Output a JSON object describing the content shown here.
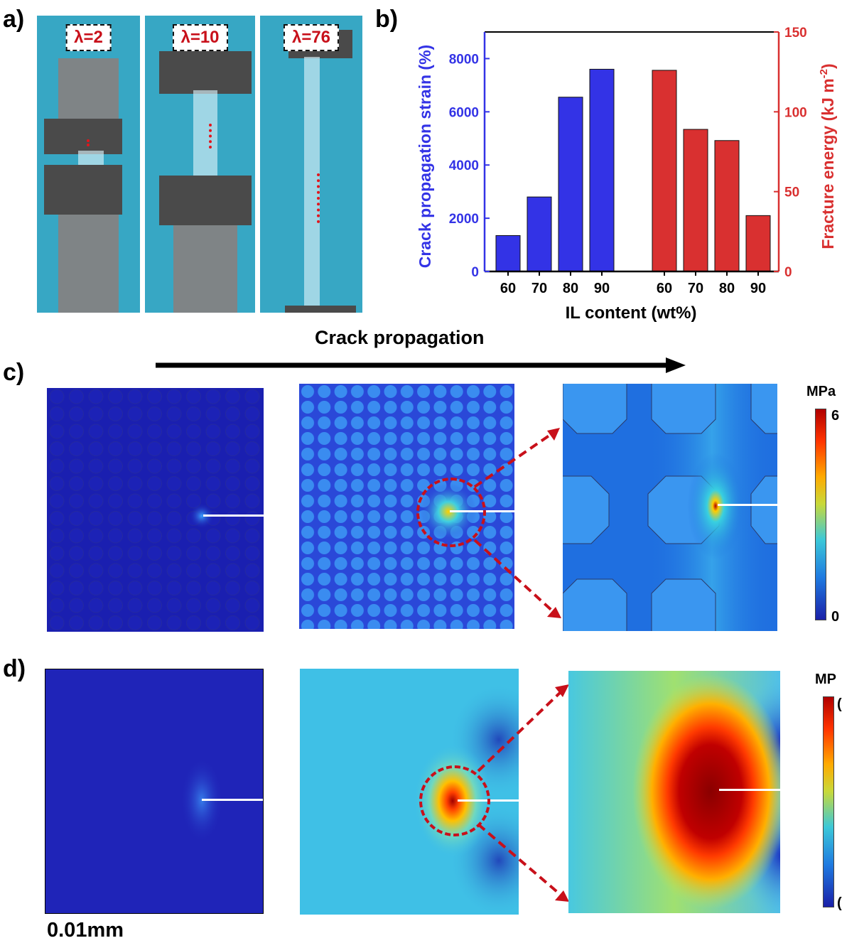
{
  "panels": {
    "a": "a)",
    "b": "b)",
    "c": "c)",
    "d": "d)"
  },
  "photos": [
    {
      "lambda": "λ=2"
    },
    {
      "lambda": "λ=10"
    },
    {
      "lambda": "λ=76"
    }
  ],
  "arrow_label": "Crack propagation",
  "colorbar_c": {
    "unit": "MPa",
    "max": "6",
    "min": "0"
  },
  "colorbar_d": {
    "unit": "MP",
    "max": "(",
    "min": "("
  },
  "scale_label": "0.01mm",
  "colors": {
    "blue": "#3333e6",
    "red": "#d93030",
    "accent_red": "#c8101a"
  },
  "chart_data": {
    "type": "bar",
    "xlabel": "IL content (wt%)",
    "ylabel_left": "Crack propagation strain (%)",
    "ylabel_right": "Fracture energy (kJ m",
    "ylabel_right_sup": "-2",
    "ylabel_right_end": ")",
    "left_ylim": [
      0,
      9000
    ],
    "right_ylim": [
      0,
      150
    ],
    "left_ticks": [
      "0",
      "2000",
      "4000",
      "6000",
      "8000"
    ],
    "right_ticks": [
      "0",
      "50",
      "100",
      "150"
    ],
    "categories": [
      "60",
      "70",
      "80",
      "90"
    ],
    "series": [
      {
        "axis": "left",
        "values": [
          1350,
          2800,
          6550,
          7600
        ]
      },
      {
        "axis": "right",
        "values": [
          126,
          89,
          82,
          35
        ]
      }
    ]
  }
}
